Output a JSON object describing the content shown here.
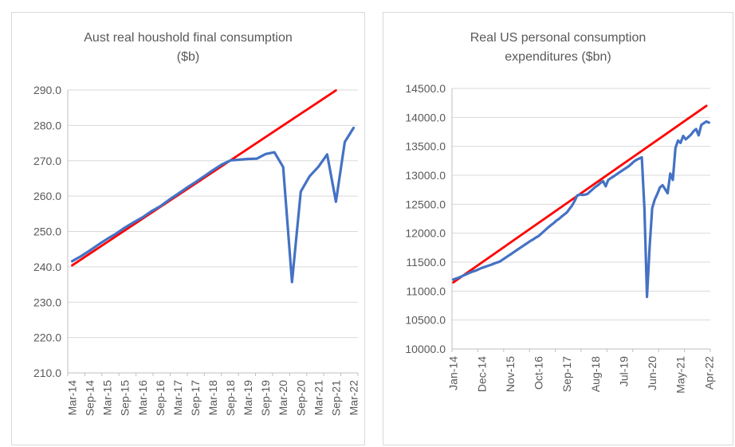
{
  "page": {
    "background": "#ffffff",
    "text_color": "#595959",
    "gridline_color": "#d9d9d9",
    "axis_color": "#bfbfbf"
  },
  "chart_data": [
    {
      "type": "line",
      "title": "Aust real houshold final consumption ($b)",
      "title_lines": [
        "Aust real houshold final consumption",
        "($b)"
      ],
      "xlabel": "",
      "ylabel": "",
      "ylim": [
        210,
        290
      ],
      "ytick_step": 10,
      "y_tick_labels": [
        "290.0",
        "280.0",
        "270.0",
        "260.0",
        "250.0",
        "240.0",
        "230.0",
        "220.0",
        "210.0"
      ],
      "x_tick_labels": [
        "Mar-14",
        "Sep-14",
        "Mar-15",
        "Sep-15",
        "Mar-16",
        "Sep-16",
        "Mar-17",
        "Sep-17",
        "Mar-18",
        "Sep-18",
        "Mar-19",
        "Sep-19",
        "Mar-20",
        "Sep-20",
        "Mar-21",
        "Sep-21",
        "Mar-22"
      ],
      "x_tick_indices": [
        0,
        2,
        4,
        6,
        8,
        10,
        12,
        14,
        16,
        18,
        20,
        22,
        24,
        26,
        28,
        30,
        32
      ],
      "n_points": 33,
      "grid": true,
      "legend": "none",
      "categories": [
        "Mar-14",
        "Jun-14",
        "Sep-14",
        "Dec-14",
        "Mar-15",
        "Jun-15",
        "Sep-15",
        "Dec-15",
        "Mar-16",
        "Jun-16",
        "Sep-16",
        "Dec-16",
        "Mar-17",
        "Jun-17",
        "Sep-17",
        "Dec-17",
        "Mar-18",
        "Jun-18",
        "Sep-18",
        "Dec-18",
        "Mar-19",
        "Jun-19",
        "Sep-19",
        "Dec-19",
        "Mar-20",
        "Jun-20",
        "Sep-20",
        "Dec-20",
        "Mar-21",
        "Jun-21",
        "Sep-21",
        "Dec-21",
        "Mar-22"
      ],
      "series": [
        {
          "name": "Aust real household final consumption",
          "color": "#4472c4",
          "values": [
            241.6,
            243.0,
            244.6,
            246.3,
            247.9,
            249.4,
            251.1,
            252.6,
            254.0,
            255.7,
            257.1,
            258.9,
            260.6,
            262.3,
            263.9,
            265.6,
            267.3,
            268.9,
            270.1,
            270.3,
            270.5,
            270.6,
            271.9,
            272.4,
            268.2,
            235.7,
            261.3,
            265.6,
            268.3,
            271.8,
            258.4,
            275.3,
            279.3
          ]
        }
      ],
      "trendline": {
        "name": "linear-trend",
        "color": "#ff0000",
        "start_index": 0,
        "start_value": 240.4,
        "end_index": 30,
        "end_value": 289.9
      }
    },
    {
      "type": "line",
      "title": "Real US personal consumption expenditures ($bn)",
      "title_lines": [
        "Real US personal consumption",
        "expenditures ($bn)"
      ],
      "xlabel": "",
      "ylabel": "",
      "ylim": [
        10000,
        14500
      ],
      "ytick_step": 500,
      "y_tick_labels": [
        "14500.0",
        "14000.0",
        "13500.0",
        "13000.0",
        "12500.0",
        "12000.0",
        "11500.0",
        "11000.0",
        "10500.0",
        "10000.0"
      ],
      "x_tick_labels": [
        "Jan-14",
        "Dec-14",
        "Nov-15",
        "Oct-16",
        "Sep-17",
        "Aug-18",
        "Jul-19",
        "Jun-20",
        "May-21",
        "Apr-22"
      ],
      "x_tick_indices": [
        0,
        11,
        22,
        33,
        44,
        55,
        66,
        77,
        88,
        99
      ],
      "n_points": 100,
      "grid": true,
      "legend": "none",
      "categories": [
        "Jan-14",
        "Feb-14",
        "Mar-14",
        "Apr-14",
        "May-14",
        "Jun-14",
        "Jul-14",
        "Aug-14",
        "Sep-14",
        "Oct-14",
        "Nov-14",
        "Dec-14",
        "Jan-15",
        "Feb-15",
        "Mar-15",
        "Apr-15",
        "May-15",
        "Jun-15",
        "Jul-15",
        "Aug-15",
        "Sep-15",
        "Oct-15",
        "Nov-15",
        "Dec-15",
        "Jan-16",
        "Feb-16",
        "Mar-16",
        "Apr-16",
        "May-16",
        "Jun-16",
        "Jul-16",
        "Aug-16",
        "Sep-16",
        "Oct-16",
        "Nov-16",
        "Dec-16",
        "Jan-17",
        "Feb-17",
        "Mar-17",
        "Apr-17",
        "May-17",
        "Jun-17",
        "Jul-17",
        "Aug-17",
        "Sep-17",
        "Oct-17",
        "Nov-17",
        "Dec-17",
        "Jan-18",
        "Feb-18",
        "Mar-18",
        "Apr-18",
        "May-18",
        "Jun-18",
        "Jul-18",
        "Aug-18",
        "Sep-18",
        "Oct-18",
        "Nov-18",
        "Dec-18",
        "Jan-19",
        "Feb-19",
        "Mar-19",
        "Apr-19",
        "May-19",
        "Jun-19",
        "Jul-19",
        "Aug-19",
        "Sep-19",
        "Oct-19",
        "Nov-19",
        "Dec-19",
        "Jan-20",
        "Feb-20",
        "Mar-20",
        "Apr-20",
        "May-20",
        "Jun-20",
        "Jul-20",
        "Aug-20",
        "Sep-20",
        "Oct-20",
        "Nov-20",
        "Dec-20",
        "Jan-21",
        "Feb-21",
        "Mar-21",
        "Apr-21",
        "May-21",
        "Jun-21",
        "Jul-21",
        "Aug-21",
        "Sep-21",
        "Oct-21",
        "Nov-21",
        "Dec-21",
        "Jan-22",
        "Feb-22",
        "Mar-22",
        "Apr-22"
      ],
      "series": [
        {
          "name": "Real US personal consumption expenditures",
          "color": "#4472c4",
          "values": [
            11200,
            11215,
            11230,
            11250,
            11270,
            11290,
            11310,
            11330,
            11345,
            11360,
            11380,
            11400,
            11415,
            11430,
            11445,
            11460,
            11480,
            11495,
            11510,
            11540,
            11570,
            11600,
            11630,
            11660,
            11690,
            11720,
            11750,
            11780,
            11810,
            11840,
            11870,
            11895,
            11925,
            11950,
            11990,
            12030,
            12070,
            12110,
            12145,
            12180,
            12220,
            12250,
            12290,
            12325,
            12360,
            12420,
            12480,
            12560,
            12650,
            12665,
            12660,
            12665,
            12680,
            12720,
            12760,
            12800,
            12830,
            12870,
            12900,
            12810,
            12920,
            12950,
            12980,
            13010,
            13040,
            13070,
            13100,
            13130,
            13160,
            13200,
            13240,
            13270,
            13290,
            13310,
            12420,
            10900,
            11760,
            12430,
            12580,
            12680,
            12790,
            12830,
            12760,
            12690,
            13030,
            12920,
            13470,
            13600,
            13560,
            13680,
            13620,
            13660,
            13700,
            13760,
            13800,
            13690,
            13870,
            13900,
            13930,
            13910
          ]
        }
      ],
      "trendline": {
        "name": "linear-trend",
        "color": "#ff0000",
        "start_index": 0,
        "start_value": 11150,
        "end_index": 98,
        "end_value": 14200
      }
    }
  ]
}
